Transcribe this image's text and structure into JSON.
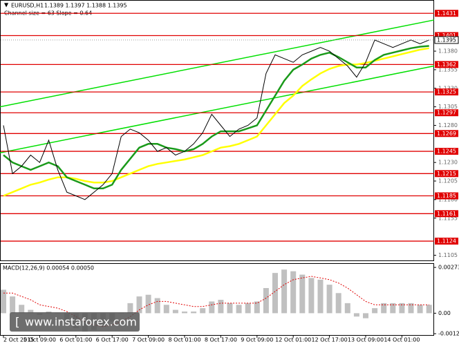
{
  "chart_data": {
    "type": "line",
    "header": {
      "symbol": "EURUSD,H1",
      "quote": "1.1389 1.1397 1.1388 1.1395",
      "channel": "Channel size = 63 Slope = 0.64"
    },
    "categories": [
      "2 Oct 2015",
      null,
      null,
      null,
      "5 Oct 09:00",
      null,
      null,
      null,
      "6 Oct 01:00",
      null,
      null,
      null,
      "6 Oct 17:00",
      null,
      null,
      null,
      "7 Oct 09:00",
      null,
      null,
      null,
      "8 Oct 01:00",
      null,
      null,
      null,
      "8 Oct 17:00",
      null,
      null,
      null,
      "9 Oct 09:00",
      null,
      null,
      null,
      "12 Oct 01:00",
      null,
      null,
      null,
      "12 Oct 17:00",
      null,
      null,
      null,
      "13 Oct 09:00",
      null,
      null,
      null,
      "14 Oct 01:00",
      null,
      null,
      null
    ],
    "series": [
      {
        "color": "#000000",
        "values": [
          1.128,
          1.1215,
          1.1225,
          1.124,
          1.123,
          1.126,
          1.122,
          1.119,
          1.1185,
          1.118,
          1.119,
          1.12,
          1.1215,
          1.1265,
          1.1275,
          1.127,
          1.126,
          1.1245,
          1.125,
          1.124,
          1.1245,
          1.1255,
          1.127,
          1.1295,
          1.128,
          1.1265,
          1.1275,
          1.128,
          1.129,
          1.135,
          1.1375,
          1.137,
          1.1365,
          1.1375,
          1.138,
          1.1385,
          1.138,
          1.137,
          1.136,
          1.1345,
          1.1365,
          1.1395,
          1.139,
          1.1385,
          1.139,
          1.1395,
          1.139,
          1.1395
        ]
      },
      {
        "color": "#1a9a1a",
        "values": [
          1.124,
          1.123,
          1.1225,
          1.122,
          1.1225,
          1.123,
          1.1225,
          1.121,
          1.1205,
          1.12,
          1.1195,
          1.1195,
          1.12,
          1.122,
          1.1235,
          1.125,
          1.1255,
          1.1255,
          1.125,
          1.1248,
          1.1245,
          1.1248,
          1.1255,
          1.1265,
          1.1272,
          1.1272,
          1.1272,
          1.1276,
          1.128,
          1.13,
          1.132,
          1.134,
          1.1355,
          1.1362,
          1.137,
          1.1375,
          1.1378,
          1.1372,
          1.1365,
          1.1358,
          1.1358,
          1.1368,
          1.1375,
          1.1378,
          1.1381,
          1.1384,
          1.1386,
          1.1387
        ]
      },
      {
        "color": "#ffff00",
        "values": [
          1.1185,
          1.119,
          1.1195,
          1.12,
          1.1203,
          1.1207,
          1.121,
          1.121,
          1.1208,
          1.1205,
          1.1203,
          1.1203,
          1.1205,
          1.121,
          1.1215,
          1.122,
          1.1225,
          1.1228,
          1.123,
          1.1232,
          1.1234,
          1.1237,
          1.124,
          1.1245,
          1.125,
          1.1252,
          1.1255,
          1.126,
          1.1265,
          1.128,
          1.1295,
          1.131,
          1.132,
          1.1333,
          1.1342,
          1.135,
          1.1356,
          1.136,
          1.1362,
          1.1362,
          1.1364,
          1.1367,
          1.137,
          1.1373,
          1.1376,
          1.1379,
          1.1382,
          1.1384
        ]
      }
    ],
    "channel": {
      "color": "#00e000",
      "upper": [
        1.1305,
        1.1422
      ],
      "lower": [
        1.1243,
        1.136
      ]
    },
    "levels": [
      1.1431,
      1.1401,
      1.1362,
      1.1325,
      1.1297,
      1.1269,
      1.1245,
      1.1215,
      1.1185,
      1.1161,
      1.1124
    ],
    "level_color": "#e00000",
    "last": 1.1395,
    "ylim": [
      1.1098,
      1.1448
    ],
    "yticks": [
      {
        "value": 1.138,
        "label": "1.1380"
      },
      {
        "value": 1.1355,
        "label": "1.1355"
      },
      {
        "value": 1.133,
        "label": "1.1330"
      },
      {
        "value": 1.1305,
        "label": "1.1305"
      },
      {
        "value": 1.128,
        "label": "1.1280"
      },
      {
        "value": 1.123,
        "label": "1.1230"
      },
      {
        "value": 1.1205,
        "label": "1.1205"
      },
      {
        "value": 1.118,
        "label": "1.1180"
      },
      {
        "value": 1.1155,
        "label": "1.1155"
      },
      {
        "value": 1.1105,
        "label": "1.1105"
      }
    ],
    "macd": {
      "title": "MACD(12,26,9) 0.00054 0.00050",
      "histogram": [
        0.0014,
        0.001,
        0.0005,
        0.0002,
        -0.0001,
        0.0001,
        0.0,
        -0.0005,
        -0.0009,
        -0.0011,
        -0.001,
        -0.0008,
        -0.0005,
        0.0,
        0.0006,
        0.001,
        0.0011,
        0.0009,
        0.0005,
        0.0002,
        0.0001,
        0.0001,
        0.0003,
        0.0007,
        0.0008,
        0.0006,
        0.0005,
        0.0006,
        0.0007,
        0.0015,
        0.0024,
        0.0026,
        0.0025,
        0.0023,
        0.0021,
        0.002,
        0.0017,
        0.0012,
        0.0006,
        -0.0002,
        -0.0003,
        0.0003,
        0.0006,
        0.0006,
        0.0006,
        0.0006,
        0.0005,
        0.0005
      ],
      "signal": [
        0.0012,
        0.0012,
        0.001,
        0.0008,
        0.0005,
        0.0004,
        0.0003,
        0.0001,
        -0.0002,
        -0.0005,
        -0.0007,
        -0.0008,
        -0.0007,
        -0.0005,
        -0.0002,
        0.0002,
        0.0005,
        0.0007,
        0.0007,
        0.0006,
        0.0005,
        0.0004,
        0.0004,
        0.0005,
        0.0006,
        0.0006,
        0.0006,
        0.0006,
        0.0006,
        0.0009,
        0.0013,
        0.0017,
        0.002,
        0.0021,
        0.0022,
        0.0021,
        0.002,
        0.0018,
        0.0015,
        0.0011,
        0.0007,
        0.0005,
        0.0005,
        0.0005,
        0.0005,
        0.0005,
        0.0005,
        0.0005
      ],
      "hist_color": "#c0c0c0",
      "signal_color": "#e00000",
      "ylim": [
        -0.0013,
        0.0029
      ],
      "yticks": [
        {
          "value": 0.00273,
          "label": "0.00273"
        },
        {
          "value": 0,
          "label": "0.00"
        },
        {
          "value": -0.00122,
          "label": "-0.00122"
        }
      ]
    },
    "watermark": "www.instaforex.com"
  }
}
